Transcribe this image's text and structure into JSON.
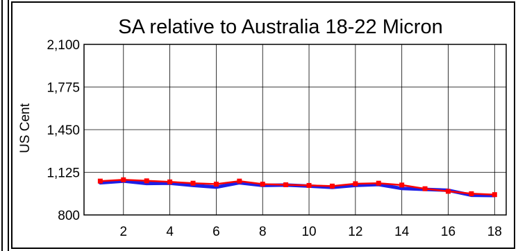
{
  "chart_data": {
    "type": "line",
    "title": "SA relative to Australia 18-22 Micron",
    "xlabel": "",
    "ylabel": "US Cent",
    "x": [
      1,
      2,
      3,
      4,
      5,
      6,
      7,
      8,
      9,
      10,
      11,
      12,
      13,
      14,
      15,
      16,
      17,
      18
    ],
    "xlim": [
      0.3,
      18.5
    ],
    "x_ticks": [
      2,
      4,
      6,
      8,
      10,
      12,
      14,
      16,
      18
    ],
    "x_tick_labels": [
      "2",
      "4",
      "6",
      "8",
      "10",
      "12",
      "14",
      "16",
      "18"
    ],
    "ylim": [
      800,
      2100
    ],
    "y_ticks": [
      800,
      1125,
      1450,
      1775,
      2100
    ],
    "y_tick_labels": [
      "800",
      "1,125",
      "1,450",
      "1,775",
      "2,100"
    ],
    "grid": true,
    "legend": "none",
    "series": [
      {
        "color": "#1e1ee6",
        "marker": "none",
        "values": [
          1045,
          1058,
          1040,
          1042,
          1025,
          1012,
          1045,
          1025,
          1028,
          1020,
          1010,
          1025,
          1032,
          1002,
          995,
          988,
          950,
          948
        ]
      },
      {
        "color": "#ff0000",
        "marker": "square",
        "values": [
          1058,
          1068,
          1060,
          1052,
          1042,
          1035,
          1058,
          1035,
          1030,
          1025,
          1020,
          1038,
          1042,
          1028,
          1000,
          980,
          962,
          955
        ]
      }
    ]
  }
}
